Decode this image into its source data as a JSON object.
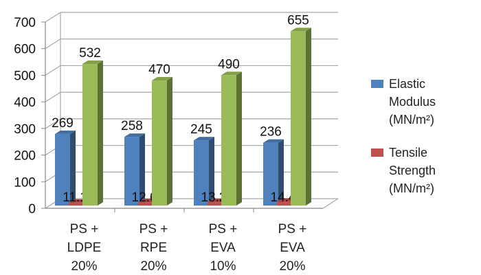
{
  "chart_data": {
    "type": "bar",
    "title": "",
    "xlabel": "",
    "ylabel": "",
    "ylim": [
      0,
      700
    ],
    "yticks": [
      "0",
      "100",
      "200",
      "300",
      "400",
      "500",
      "600",
      "700"
    ],
    "categories": [
      [
        "PS +",
        "LDPE",
        "20%"
      ],
      [
        "PS +",
        "RPE",
        "20%"
      ],
      [
        "PS +",
        "EVA",
        "10%"
      ],
      [
        "PS +",
        "EVA",
        "20%"
      ]
    ],
    "series": [
      {
        "name": [
          "Elastic",
          "Modulus",
          "(MN/m²)"
        ],
        "color": "#4f81bd",
        "values": [
          269,
          258,
          245,
          236
        ],
        "labels": [
          "269",
          "258",
          "245",
          "236"
        ]
      },
      {
        "name": [
          "Tensile",
          "Strength",
          "(MN/m²)"
        ],
        "color": "#c0504d",
        "values": [
          11.1,
          12.6,
          13.2,
          14.4
        ],
        "labels": [
          "11.1",
          "12.6",
          "13.2",
          "14.4"
        ]
      },
      {
        "name": null,
        "color": "#9bbb59",
        "values": [
          532,
          470,
          490,
          655
        ],
        "labels": [
          "532",
          "470",
          "490",
          "655"
        ]
      }
    ],
    "grid": true,
    "legend": "right"
  }
}
